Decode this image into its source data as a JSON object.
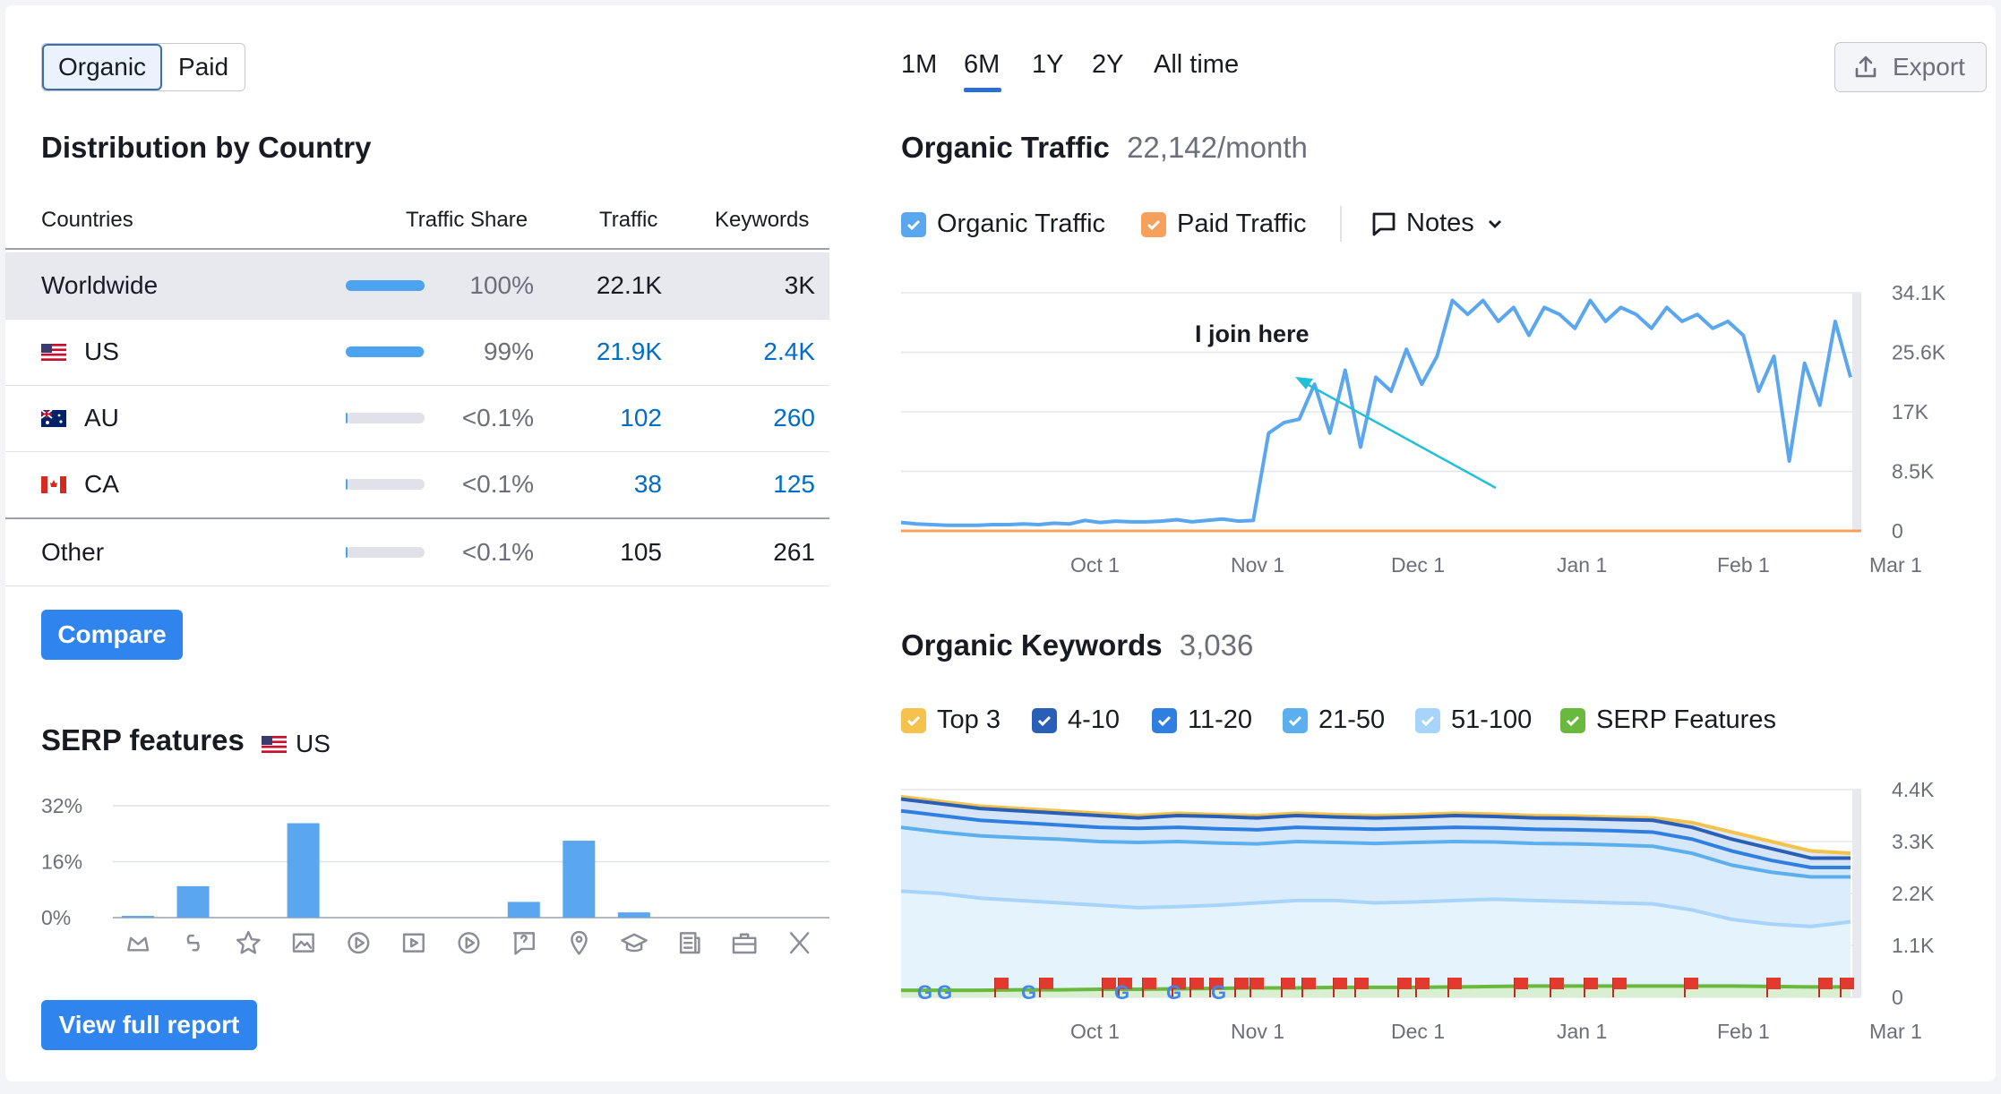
{
  "toggle": {
    "organic": "Organic",
    "paid": "Paid"
  },
  "distribution": {
    "title": "Distribution by Country",
    "headers": {
      "countries": "Countries",
      "share": "Traffic Share",
      "traffic": "Traffic",
      "keywords": "Keywords"
    },
    "rows": [
      {
        "name": "Worldwide",
        "share": "100%",
        "traffic": "22.1K",
        "keywords": "3K",
        "fill": 1.0
      },
      {
        "name": "US",
        "share": "99%",
        "traffic": "21.9K",
        "keywords": "2.4K",
        "fill": 0.99
      },
      {
        "name": "AU",
        "share": "<0.1%",
        "traffic": "102",
        "keywords": "260",
        "fill": 0.001
      },
      {
        "name": "CA",
        "share": "<0.1%",
        "traffic": "38",
        "keywords": "125",
        "fill": 0.001
      },
      {
        "name": "Other",
        "share": "<0.1%",
        "traffic": "105",
        "keywords": "261",
        "fill": 0.001
      }
    ],
    "compare": "Compare"
  },
  "serp": {
    "title": "SERP features",
    "country": "US",
    "view_full": "View full report",
    "icons": [
      "crown-icon",
      "link-icon",
      "star-icon",
      "image-icon",
      "video-icon",
      "video-carousel-icon",
      "play-icon",
      "question-icon",
      "location-icon",
      "education-icon",
      "news-icon",
      "briefcase-icon",
      "x-icon"
    ],
    "chart_data": {
      "type": "bar",
      "ylim": [
        0,
        32
      ],
      "yticks": [
        "32%",
        "16%",
        "0%"
      ],
      "values": [
        0.5,
        9,
        0,
        27,
        0,
        0,
        0,
        4.5,
        22,
        1.5,
        0,
        0,
        0
      ]
    }
  },
  "periods": [
    "1M",
    "6M",
    "1Y",
    "2Y",
    "All time"
  ],
  "active_period": "6M",
  "export": "Export",
  "traffic": {
    "title": "Organic Traffic",
    "value": "22,142/month",
    "legend": {
      "organic": "Organic Traffic",
      "paid": "Paid Traffic",
      "notes": "Notes"
    },
    "annotation": "I join here",
    "colors": {
      "organic": "#5aa6ef",
      "paid": "#f6a05c"
    },
    "chart_data": {
      "type": "line",
      "yticks": [
        "34.1K",
        "25.6K",
        "17K",
        "8.5K",
        "0"
      ],
      "xticks": [
        "Oct 1",
        "Nov 1",
        "Dec 1",
        "Jan 1",
        "Feb 1",
        "Mar 1"
      ],
      "ylim": [
        0,
        34100
      ],
      "series": [
        {
          "name": "Organic Traffic",
          "values": [
            1200,
            1000,
            900,
            800,
            800,
            800,
            900,
            900,
            1000,
            900,
            1100,
            1000,
            1500,
            1200,
            1400,
            1300,
            1300,
            1400,
            1600,
            1300,
            1500,
            1700,
            1400,
            1500,
            14000,
            15500,
            16000,
            21000,
            14000,
            23000,
            12000,
            22000,
            20000,
            26000,
            21000,
            25000,
            33000,
            31000,
            33000,
            30000,
            32000,
            28000,
            32000,
            31000,
            29000,
            33000,
            30000,
            32000,
            31000,
            29000,
            32000,
            30000,
            31000,
            29000,
            30000,
            28000,
            20000,
            25000,
            10000,
            24000,
            18000,
            30000,
            22000
          ]
        },
        {
          "name": "Paid Traffic",
          "values": [
            0,
            0
          ]
        }
      ]
    }
  },
  "keywords": {
    "title": "Organic Keywords",
    "value": "3,036",
    "legend": [
      "Top 3",
      "4-10",
      "11-20",
      "21-50",
      "51-100",
      "SERP Features"
    ],
    "legend_colors": [
      "#f5c34d",
      "#2a5fb7",
      "#2f7fe0",
      "#5cafef",
      "#a8d3fa",
      "#6ab93f"
    ],
    "chart_data": {
      "type": "area",
      "yticks": [
        "4.4K",
        "3.3K",
        "2.2K",
        "1.1K",
        "0"
      ],
      "xticks": [
        "Oct 1",
        "Nov 1",
        "Dec 1",
        "Jan 1",
        "Feb 1",
        "Mar 1"
      ],
      "ylim": [
        0,
        4400
      ],
      "series": [
        {
          "name": "Top 3",
          "values": [
            4250,
            4150,
            4050,
            4000,
            3950,
            3900,
            3850,
            3900,
            3870,
            3850,
            3900,
            3870,
            3850,
            3870,
            3900,
            3880,
            3850,
            3840,
            3820,
            3800,
            3700,
            3500,
            3300,
            3100,
            3050
          ]
        },
        {
          "name": "4-10",
          "values": [
            4200,
            4100,
            4000,
            3950,
            3900,
            3850,
            3800,
            3850,
            3830,
            3800,
            3850,
            3820,
            3800,
            3820,
            3850,
            3830,
            3800,
            3790,
            3770,
            3750,
            3600,
            3350,
            3150,
            2950,
            2950
          ]
        },
        {
          "name": "11-20",
          "values": [
            3950,
            3850,
            3750,
            3700,
            3650,
            3600,
            3580,
            3600,
            3570,
            3550,
            3600,
            3580,
            3560,
            3580,
            3600,
            3590,
            3560,
            3550,
            3530,
            3500,
            3350,
            3100,
            2900,
            2750,
            2750
          ]
        },
        {
          "name": "21-50",
          "values": [
            3600,
            3500,
            3420,
            3380,
            3350,
            3300,
            3280,
            3300,
            3270,
            3250,
            3300,
            3280,
            3260,
            3280,
            3300,
            3290,
            3260,
            3250,
            3230,
            3200,
            3050,
            2800,
            2650,
            2550,
            2550
          ]
        },
        {
          "name": "51-100",
          "values": [
            2250,
            2200,
            2100,
            2050,
            2000,
            1950,
            1900,
            1920,
            1950,
            2000,
            2050,
            2050,
            2000,
            2020,
            2050,
            2080,
            2050,
            2030,
            2000,
            1980,
            1850,
            1650,
            1550,
            1500,
            1600
          ]
        },
        {
          "name": "SERP Features",
          "values": [
            150,
            150,
            150,
            160,
            160,
            170,
            170,
            180,
            190,
            200,
            200,
            210,
            210,
            210,
            220,
            230,
            240,
            240,
            240,
            240,
            240,
            240,
            230,
            220,
            220
          ]
        }
      ]
    }
  }
}
